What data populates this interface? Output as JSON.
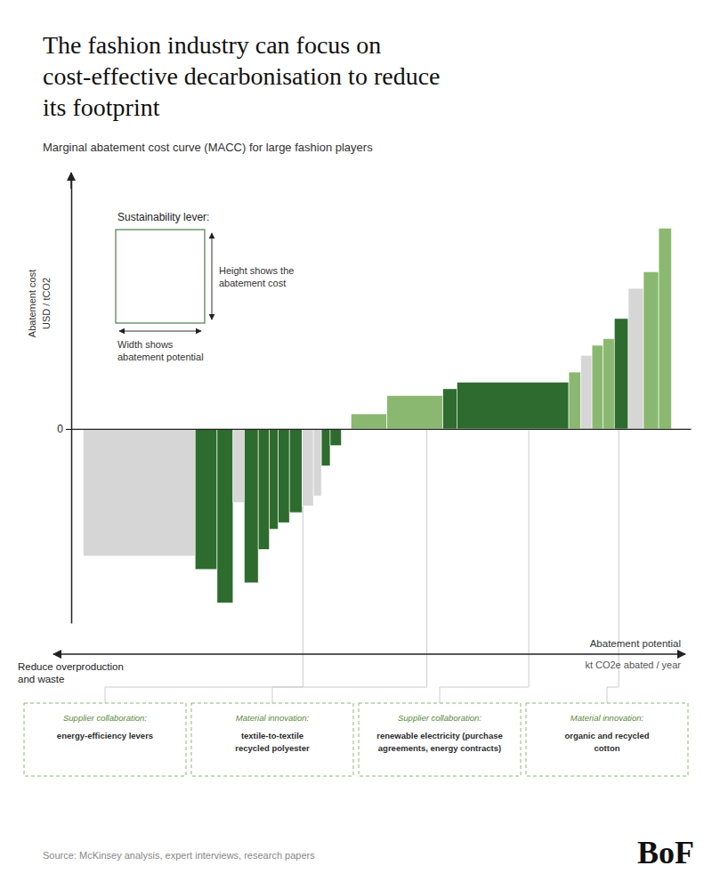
{
  "chart_data": {
    "type": "bar",
    "title": "The fashion industry can focus on\ncost-effective decarbonisation to reduce\nits footprint",
    "subtitle": "Marginal abatement cost curve (MACC) for large fashion players",
    "x": [
      0.0,
      2.8,
      3.35,
      3.75,
      4.03,
      4.38,
      4.66,
      4.88,
      5.16,
      5.48,
      5.76,
      5.96,
      6.18,
      6.7,
      7.6,
      9.0,
      9.35,
      12.15,
      12.45,
      12.73,
      13.01,
      13.29,
      13.64,
      14.02,
      14.4
    ],
    "widths": [
      2.8,
      0.55,
      0.4,
      0.28,
      0.35,
      0.28,
      0.22,
      0.28,
      0.32,
      0.28,
      0.2,
      0.22,
      0.28,
      0.9,
      1.4,
      0.35,
      2.8,
      0.3,
      0.28,
      0.28,
      0.28,
      0.35,
      0.38,
      0.38,
      0.32
    ],
    "values": [
      -3.8,
      -4.2,
      -5.2,
      -2.2,
      -4.6,
      -3.6,
      -3.0,
      -2.8,
      -2.5,
      -2.3,
      -2.0,
      -1.1,
      -0.5,
      0.45,
      1.0,
      1.2,
      1.4,
      1.7,
      2.2,
      2.5,
      2.7,
      3.3,
      4.2,
      4.7,
      6.0
    ],
    "colors": [
      "#d6d6d6",
      "#2e6b2e",
      "#2e6b2e",
      "#d6d6d6",
      "#2e6b2e",
      "#2e6b2e",
      "#2e6b2e",
      "#2e6b2e",
      "#2e6b2e",
      "#d6d6d6",
      "#d6d6d6",
      "#2e6b2e",
      "#2e6b2e",
      "#8ab870",
      "#8ab870",
      "#2e6b2e",
      "#2e6b2e",
      "#8ab870",
      "#d6d6d6",
      "#8ab870",
      "#8ab870",
      "#2e6b2e",
      "#d6d6d6",
      "#8ab870",
      "#8ab870"
    ],
    "xlim": [
      -0.3,
      15.2
    ],
    "xticks": [],
    "ylim": [
      -5.8,
      7.5
    ],
    "yticks": [
      0
    ],
    "tick_labels": "y",
    "grid": false,
    "xlabel": "Abatement potential",
    "xlabel_unit": "kt CO2e abated / year",
    "ylabel": "Abatement cost",
    "ylabel_unit": "USD / tCO2",
    "legend_title": "Sustainability lever:",
    "legend_height_text": "Height shows the\nabatement cost",
    "legend_width_text": "Width shows\nabatement potential",
    "annotations": [
      {
        "x": 5.5,
        "text": "Supplier collaboration:\nenergy-efficiency levers"
      },
      {
        "x": 8.6,
        "text": "Material innovation:\ntextile-to-textile\nrecycled polyester"
      },
      {
        "x": 11.15,
        "text": "Supplier collaboration:\nrenewable electricity (purchase\nagreements, energy contracts)"
      },
      {
        "x": 13.4,
        "text": "Material innovation:\norganic and recycled\ncotton"
      }
    ],
    "notes": [
      "Reduce overproduction\nand waste"
    ],
    "source": "Source: McKinsey analysis, expert interviews, research papers",
    "logo": "BoF"
  }
}
